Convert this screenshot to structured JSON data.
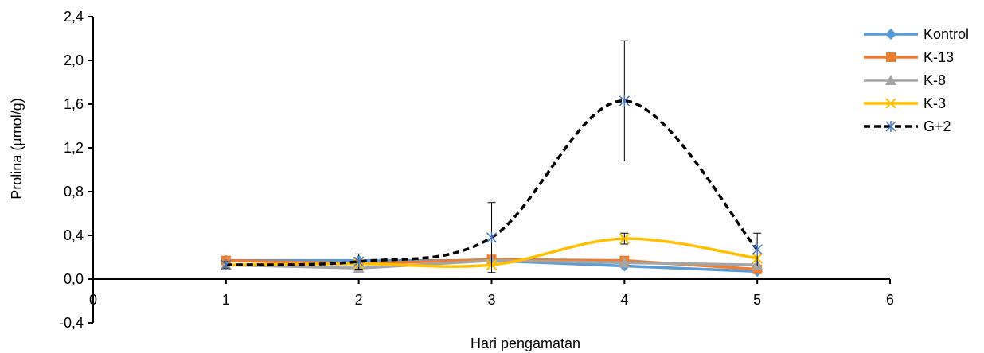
{
  "chart_data": {
    "type": "line",
    "title": "",
    "xlabel": "Hari pengamatan",
    "ylabel": "Prolina (µmol/g)",
    "xlim": [
      0,
      6
    ],
    "ylim": [
      -0.4,
      2.4
    ],
    "x_ticks": [
      "0",
      "1",
      "2",
      "3",
      "4",
      "5",
      "6"
    ],
    "y_ticks": [
      "-0,4",
      "0,0",
      "0,4",
      "0,8",
      "1,2",
      "1,6",
      "2,0",
      "2,4"
    ],
    "grid": false,
    "legend_position": "right",
    "x": [
      1,
      2,
      3,
      4,
      5
    ],
    "series": [
      {
        "name": "Kontrol",
        "values": [
          0.17,
          0.17,
          0.17,
          0.12,
          0.07
        ],
        "color": "#5B9BD5",
        "marker": "diamond",
        "dash": false,
        "smooth": false
      },
      {
        "name": "K-13",
        "values": [
          0.17,
          0.14,
          0.18,
          0.17,
          0.09
        ],
        "color": "#ED7D31",
        "marker": "square",
        "dash": false,
        "smooth": false
      },
      {
        "name": "K-8",
        "values": [
          0.13,
          0.1,
          0.17,
          0.15,
          0.13
        ],
        "color": "#A5A5A5",
        "marker": "triangle",
        "dash": false,
        "smooth": false
      },
      {
        "name": "K-3",
        "values": [
          0.13,
          0.14,
          0.13,
          0.37,
          0.19
        ],
        "color": "#FFC000",
        "marker": "x",
        "dash": false,
        "smooth": true,
        "error": [
          0,
          0,
          0,
          0.05,
          0
        ]
      },
      {
        "name": "G+2",
        "values": [
          0.13,
          0.16,
          0.38,
          1.63,
          0.27
        ],
        "color": "#000000",
        "marker_color": "#4472C4",
        "marker": "asterisk",
        "dash": true,
        "smooth": true,
        "error": [
          0.03,
          0.07,
          0.32,
          0.55,
          0.15
        ]
      }
    ]
  }
}
